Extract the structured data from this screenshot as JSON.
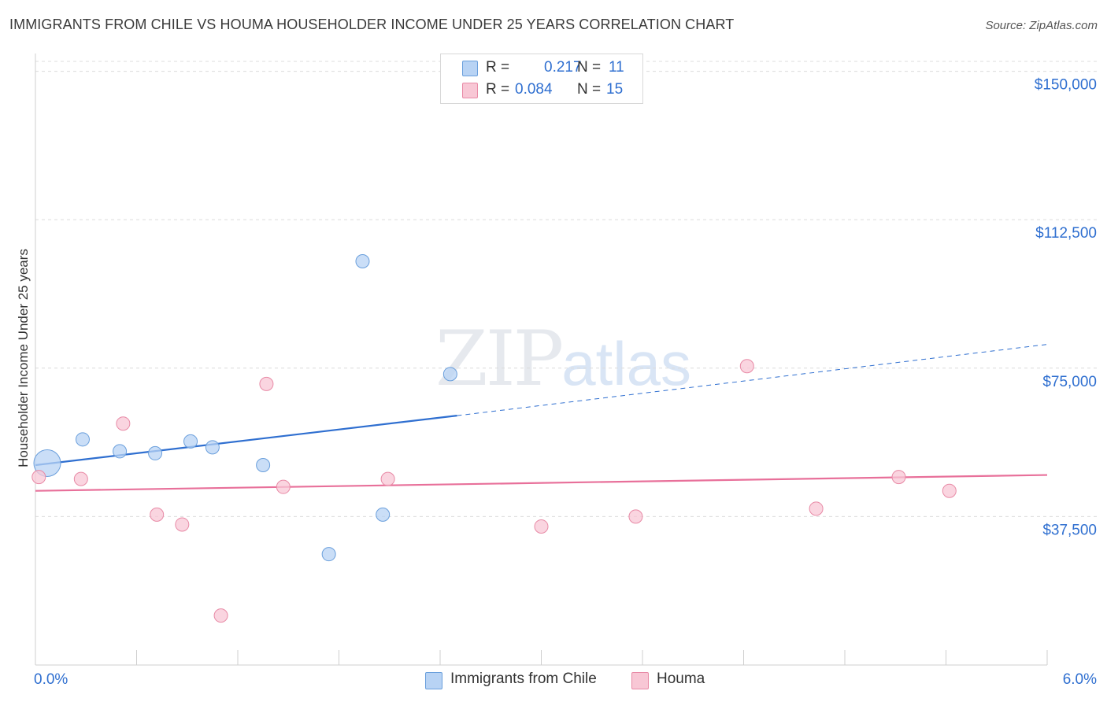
{
  "header": {
    "title": "IMMIGRANTS FROM CHILE VS HOUMA HOUSEHOLDER INCOME UNDER 25 YEARS CORRELATION CHART",
    "source": "Source: ZipAtlas.com"
  },
  "watermark": {
    "zip": "ZIP",
    "atlas": "atlas"
  },
  "legend": {
    "r_label": "R =",
    "n_label": "N =",
    "rows": [
      {
        "r": "0.217",
        "n": "11",
        "color": "#b8d3f4"
      },
      {
        "r": "0.084",
        "n": "15",
        "color": "#f8c7d5"
      }
    ]
  },
  "bottom_legend": [
    {
      "label": "Immigrants from Chile",
      "color": "#b8d3f4"
    },
    {
      "label": "Houma",
      "color": "#f8c7d5"
    }
  ],
  "chart_data": {
    "type": "scatter",
    "title": "IMMIGRANTS FROM CHILE VS HOUMA HOUSEHOLDER INCOME UNDER 25 YEARS CORRELATION CHART",
    "xlabel": "",
    "ylabel": "Householder Income Under 25 years",
    "xlim": [
      0,
      6
    ],
    "ylim": [
      0,
      152500
    ],
    "x_tick_labels": [
      "0.0%",
      "6.0%"
    ],
    "y_ticks": [
      37500,
      75000,
      112500,
      150000
    ],
    "y_tick_labels": [
      "$37,500",
      "$75,000",
      "$112,500",
      "$150,000"
    ],
    "grid": true,
    "series": [
      {
        "name": "Immigrants from Chile",
        "color": "#b8d3f4",
        "stroke": "#6a9fdc",
        "line_color": "#2f6fd0",
        "points": [
          {
            "x": 0.07,
            "y": 51000,
            "big": true
          },
          {
            "x": 0.28,
            "y": 57000
          },
          {
            "x": 0.5,
            "y": 54000
          },
          {
            "x": 0.71,
            "y": 53500
          },
          {
            "x": 0.92,
            "y": 56500
          },
          {
            "x": 1.05,
            "y": 55000
          },
          {
            "x": 1.35,
            "y": 50500
          },
          {
            "x": 1.74,
            "y": 28000
          },
          {
            "x": 1.94,
            "y": 102000
          },
          {
            "x": 2.06,
            "y": 38000
          },
          {
            "x": 2.46,
            "y": 73500
          }
        ],
        "trend": {
          "x0": 0,
          "y0": 50500,
          "x1": 2.5,
          "y1": 63000,
          "x_end": 6,
          "y_end": 81000
        }
      },
      {
        "name": "Houma",
        "color": "#f8c7d5",
        "stroke": "#e88aa6",
        "line_color": "#e8709a",
        "points": [
          {
            "x": 0.02,
            "y": 47500
          },
          {
            "x": 0.27,
            "y": 47000
          },
          {
            "x": 0.52,
            "y": 61000
          },
          {
            "x": 0.72,
            "y": 38000
          },
          {
            "x": 0.87,
            "y": 35500
          },
          {
            "x": 1.1,
            "y": 12500
          },
          {
            "x": 1.37,
            "y": 71000
          },
          {
            "x": 1.47,
            "y": 45000
          },
          {
            "x": 2.09,
            "y": 47000
          },
          {
            "x": 3.0,
            "y": 35000
          },
          {
            "x": 3.56,
            "y": 37500
          },
          {
            "x": 4.22,
            "y": 75500
          },
          {
            "x": 4.63,
            "y": 39500
          },
          {
            "x": 5.12,
            "y": 47500
          },
          {
            "x": 5.42,
            "y": 44000
          }
        ],
        "trend": {
          "x0": 0,
          "y0": 44000,
          "x1": 6,
          "y1": 48000
        }
      }
    ]
  }
}
